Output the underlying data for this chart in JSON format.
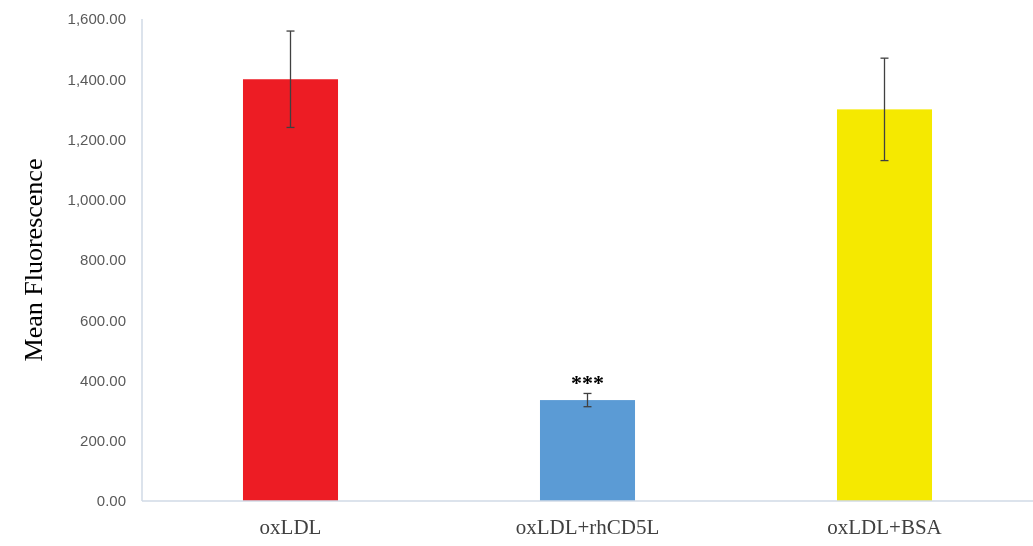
{
  "chart_data": {
    "type": "bar",
    "ylabel": "Mean Fluorescence",
    "categories": [
      "oxLDL",
      "oxLDL+rhCD5L",
      "oxLDL+BSA"
    ],
    "values": [
      1400,
      335,
      1300
    ],
    "colors": [
      "#ed1c24",
      "#5b9bd5",
      "#f5e900"
    ],
    "errors": [
      160,
      22,
      170
    ],
    "ylim": [
      0,
      1600
    ],
    "yticks": [
      {
        "value": 0,
        "label": "0.00"
      },
      {
        "value": 200,
        "label": "200.00"
      },
      {
        "value": 400,
        "label": "400.00"
      },
      {
        "value": 600,
        "label": "600.00"
      },
      {
        "value": 800,
        "label": "800.00"
      },
      {
        "value": 1000,
        "label": "1,000.00"
      },
      {
        "value": 1200,
        "label": "1,200.00"
      },
      {
        "value": 1400,
        "label": "1,400.00"
      },
      {
        "value": 1600,
        "label": "1,600.00"
      }
    ],
    "annotations": [
      {
        "text": "***",
        "x": "oxLDL+rhCD5L",
        "y": 335
      }
    ],
    "grid": false
  }
}
